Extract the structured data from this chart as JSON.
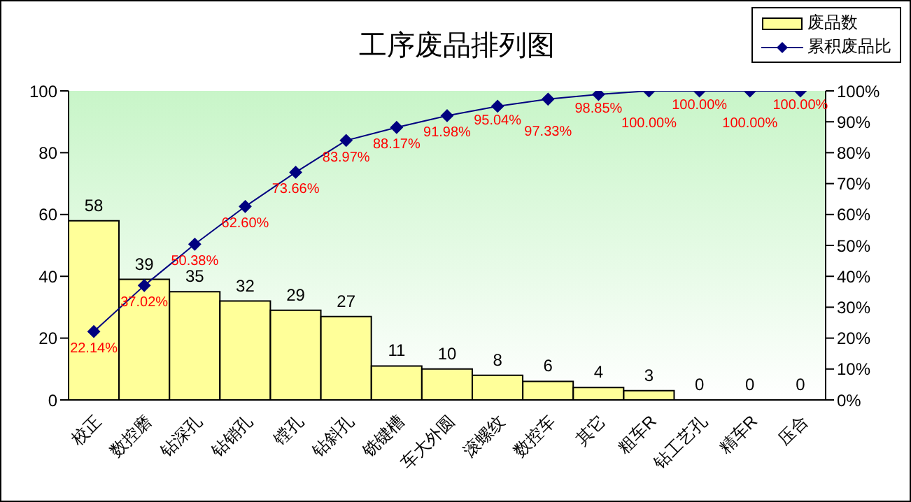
{
  "chart_data": {
    "type": "bar",
    "title": "工序废品排列图",
    "categories": [
      "校正",
      "数控磨",
      "钻深孔",
      "钻销孔",
      "镗孔",
      "钻斜孔",
      "铣键槽",
      "车大外圆",
      "滚螺纹",
      "数控车",
      "其它",
      "粗车R",
      "钻工艺孔",
      "精车R",
      "压合"
    ],
    "series": [
      {
        "name": "废品数",
        "color": "#ffff99",
        "values": [
          58,
          39,
          35,
          32,
          29,
          27,
          11,
          10,
          8,
          6,
          4,
          3,
          0,
          0,
          0
        ],
        "value_labels": [
          "58",
          "39",
          "35",
          "32",
          "29",
          "27",
          "11",
          "10",
          "8",
          "6",
          "4",
          "3",
          "0",
          "0",
          "0"
        ]
      },
      {
        "name": "累积废品比",
        "type": "line",
        "axis": "y2",
        "color": "#000080",
        "marker": "diamond",
        "values": [
          22.14,
          37.02,
          50.38,
          62.6,
          73.66,
          83.97,
          88.17,
          91.98,
          95.04,
          97.33,
          98.85,
          100,
          100,
          100,
          100
        ],
        "value_labels": [
          "22.14%",
          "37.02%",
          "50.38%",
          "62.60%",
          "73.66%",
          "83.97%",
          "88.17%",
          "91.98%",
          "95.04%",
          "97.33%",
          "98.85%",
          "100.00%",
          "100.00%",
          "100.00%",
          "100.00%"
        ]
      }
    ],
    "ylim": [
      0,
      100
    ],
    "yticks": [
      0,
      20,
      40,
      60,
      80,
      100
    ],
    "y2lim": [
      0,
      100
    ],
    "y2ticks": [
      {
        "value": 0,
        "label": "0%"
      },
      {
        "value": 10,
        "label": "10%"
      },
      {
        "value": 20,
        "label": "20%"
      },
      {
        "value": 30,
        "label": "30%"
      },
      {
        "value": 40,
        "label": "40%"
      },
      {
        "value": 50,
        "label": "50%"
      },
      {
        "value": 60,
        "label": "60%"
      },
      {
        "value": 70,
        "label": "70%"
      },
      {
        "value": 80,
        "label": "80%"
      },
      {
        "value": 90,
        "label": "90%"
      },
      {
        "value": 100,
        "label": "100%"
      }
    ],
    "legend": "top right"
  }
}
